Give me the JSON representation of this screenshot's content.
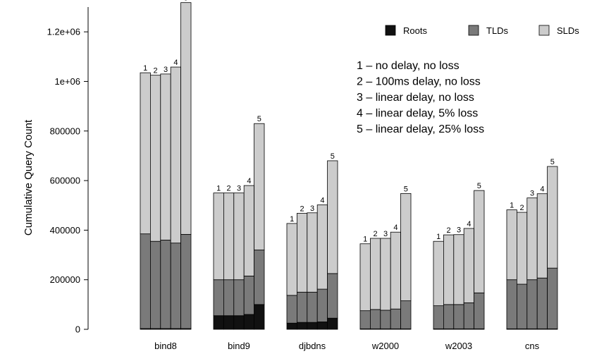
{
  "chart_data": {
    "type": "bar",
    "stacked": true,
    "ylabel": "Cumulative Query Count",
    "xlabel": "",
    "ylim": [
      0,
      1300000
    ],
    "yticks": [
      {
        "value": 0,
        "label": "0"
      },
      {
        "value": 200000,
        "label": "200000"
      },
      {
        "value": 400000,
        "label": "400000"
      },
      {
        "value": 600000,
        "label": "600000"
      },
      {
        "value": 800000,
        "label": "800000"
      },
      {
        "value": 1000000,
        "label": "1e+06"
      },
      {
        "value": 1200000,
        "label": "1.2e+06"
      }
    ],
    "categories": [
      "bind8",
      "bind9",
      "djbdns",
      "w2000",
      "w2003",
      "cns"
    ],
    "bar_labels": [
      "1",
      "2",
      "3",
      "4",
      "5"
    ],
    "series": [
      {
        "name": "Roots",
        "color": "#111111",
        "values": [
          [
            3000,
            3000,
            3000,
            3000,
            3000
          ],
          [
            55000,
            55000,
            55000,
            60000,
            100000
          ],
          [
            25000,
            28000,
            28000,
            30000,
            45000
          ],
          [
            2000,
            2000,
            2000,
            2000,
            2000
          ],
          [
            2000,
            2000,
            2000,
            2000,
            2000
          ],
          [
            2000,
            2000,
            2000,
            2000,
            2000
          ]
        ]
      },
      {
        "name": "TLDs",
        "color": "#7a7a7a",
        "values": [
          [
            382000,
            352000,
            357000,
            345000,
            380000
          ],
          [
            145000,
            145000,
            145000,
            155000,
            220000
          ],
          [
            112000,
            122000,
            122000,
            132000,
            180000
          ],
          [
            73000,
            78000,
            75000,
            80000,
            113000
          ],
          [
            93000,
            98000,
            98000,
            105000,
            145000
          ],
          [
            198000,
            180000,
            198000,
            205000,
            245000
          ]
        ]
      },
      {
        "name": "SLDs",
        "color": "#cccccc",
        "values": [
          [
            650000,
            670000,
            670000,
            710000,
            935000
          ],
          [
            350000,
            350000,
            350000,
            365000,
            510000
          ],
          [
            290000,
            318000,
            320000,
            340000,
            455000
          ],
          [
            270000,
            287000,
            290000,
            310000,
            433000
          ],
          [
            260000,
            281000,
            282000,
            300000,
            413000
          ],
          [
            282000,
            290000,
            330000,
            340000,
            410000
          ]
        ]
      }
    ],
    "legend_position": "top-right",
    "annotations": [
      "1 – no delay, no loss",
      "2 – 100ms delay, no loss",
      "3 – linear delay, no loss",
      "4 – linear delay, 5% loss",
      "5 – linear delay, 25% loss"
    ]
  }
}
